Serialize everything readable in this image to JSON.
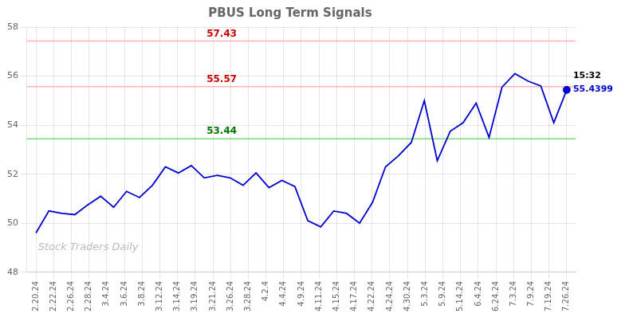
{
  "chart_data": {
    "type": "line",
    "title": "PBUS Long Term Signals",
    "x": [
      0,
      0.7317073170731707,
      1.4634146341463414,
      2.195121951219512,
      2.926829268292683,
      3.658536585365854,
      4.390243902439025,
      5.121951219512195,
      5.853658536585366,
      6.585365853658536,
      7.317073170731707,
      8.048780487804878,
      8.78048780487805,
      9.512195121951219,
      10.24390243902439,
      10.975609756097562,
      11.707317073170731,
      12.439024390243903,
      13.170731707317072,
      13.902439024390244,
      14.634146341463415,
      15.365853658536585,
      16.097560975609756,
      16.829268292682926,
      17.560975609756095,
      18.29268292682927,
      19.024390243902438,
      19.75609756097561,
      20.48780487804878,
      21.21951219512195,
      21.95121951219512,
      22.682926829268293,
      23.414634146341463,
      24.146341463414632,
      24.878048780487806,
      25.609756097560975,
      26.341463414634145,
      27.073170731707318,
      27.804878048780488,
      28.536585365853657,
      29.26829268292683,
      30
    ],
    "values": [
      49.6,
      50.5,
      50.4,
      50.35,
      50.75,
      51.1,
      50.65,
      51.3,
      51.05,
      51.55,
      52.3,
      52.05,
      52.35,
      51.85,
      51.95,
      51.85,
      51.55,
      52.05,
      51.45,
      51.75,
      51.5,
      50.1,
      49.85,
      50.5,
      50.4,
      50.0,
      50.85,
      52.3,
      52.75,
      53.3,
      55.0,
      52.55,
      53.75,
      54.1,
      54.9,
      53.5,
      55.55,
      56.1,
      55.8,
      55.6,
      54.1,
      55.4399
    ],
    "color": "#0000cc",
    "hlines": [
      {
        "value": 57.43,
        "label": "57.43",
        "color": "#ffb3b3",
        "label_color": "#cc0000"
      },
      {
        "value": 55.57,
        "label": "55.57",
        "color": "#ffb3b3",
        "label_color": "#cc0000"
      },
      {
        "value": 53.44,
        "label": "53.44",
        "color": "#77dd77",
        "label_color": "#007700"
      }
    ],
    "annotations": [
      {
        "text": "15:32",
        "color": "#000000"
      },
      {
        "text": "55.4399",
        "color": "#0000cc"
      },
      {
        "text": "Stock Traders Daily",
        "color": "#bbbbbb"
      }
    ],
    "xlim": [
      -0.5,
      30.5
    ],
    "xticks": [
      {
        "value": 0,
        "label": "2.20.24"
      },
      {
        "value": 1,
        "label": "2.22.24"
      },
      {
        "value": 2,
        "label": "2.26.24"
      },
      {
        "value": 3,
        "label": "2.28.24"
      },
      {
        "value": 4,
        "label": "3.4.24"
      },
      {
        "value": 5,
        "label": "3.6.24"
      },
      {
        "value": 6,
        "label": "3.8.24"
      },
      {
        "value": 7,
        "label": "3.12.24"
      },
      {
        "value": 8,
        "label": "3.14.24"
      },
      {
        "value": 9,
        "label": "3.19.24"
      },
      {
        "value": 10,
        "label": "3.21.24"
      },
      {
        "value": 11,
        "label": "3.26.24"
      },
      {
        "value": 12,
        "label": "3.28.24"
      },
      {
        "value": 13,
        "label": "4.2.4"
      },
      {
        "value": 14,
        "label": "4.4.24"
      },
      {
        "value": 15,
        "label": "4.9.24"
      },
      {
        "value": 16,
        "label": "4.11.24"
      },
      {
        "value": 17,
        "label": "4.15.24"
      },
      {
        "value": 18,
        "label": "4.17.24"
      },
      {
        "value": 19,
        "label": "4.22.24"
      },
      {
        "value": 20,
        "label": "4.24.24"
      },
      {
        "value": 21,
        "label": "4.30.24"
      },
      {
        "value": 22,
        "label": "5.3.24"
      },
      {
        "value": 23,
        "label": "5.9.24"
      },
      {
        "value": 24,
        "label": "5.14.24"
      },
      {
        "value": 25,
        "label": "6.4.24"
      },
      {
        "value": 26,
        "label": "6.24.24"
      },
      {
        "value": 27,
        "label": "7.3.24"
      },
      {
        "value": 28,
        "label": "7.9.24"
      },
      {
        "value": 29,
        "label": "7.19.24"
      },
      {
        "value": 30,
        "label": "7.26.24"
      }
    ],
    "ylim": [
      48,
      58
    ],
    "yticks": [
      48,
      50,
      52,
      54,
      56,
      58
    ],
    "grid": true
  }
}
